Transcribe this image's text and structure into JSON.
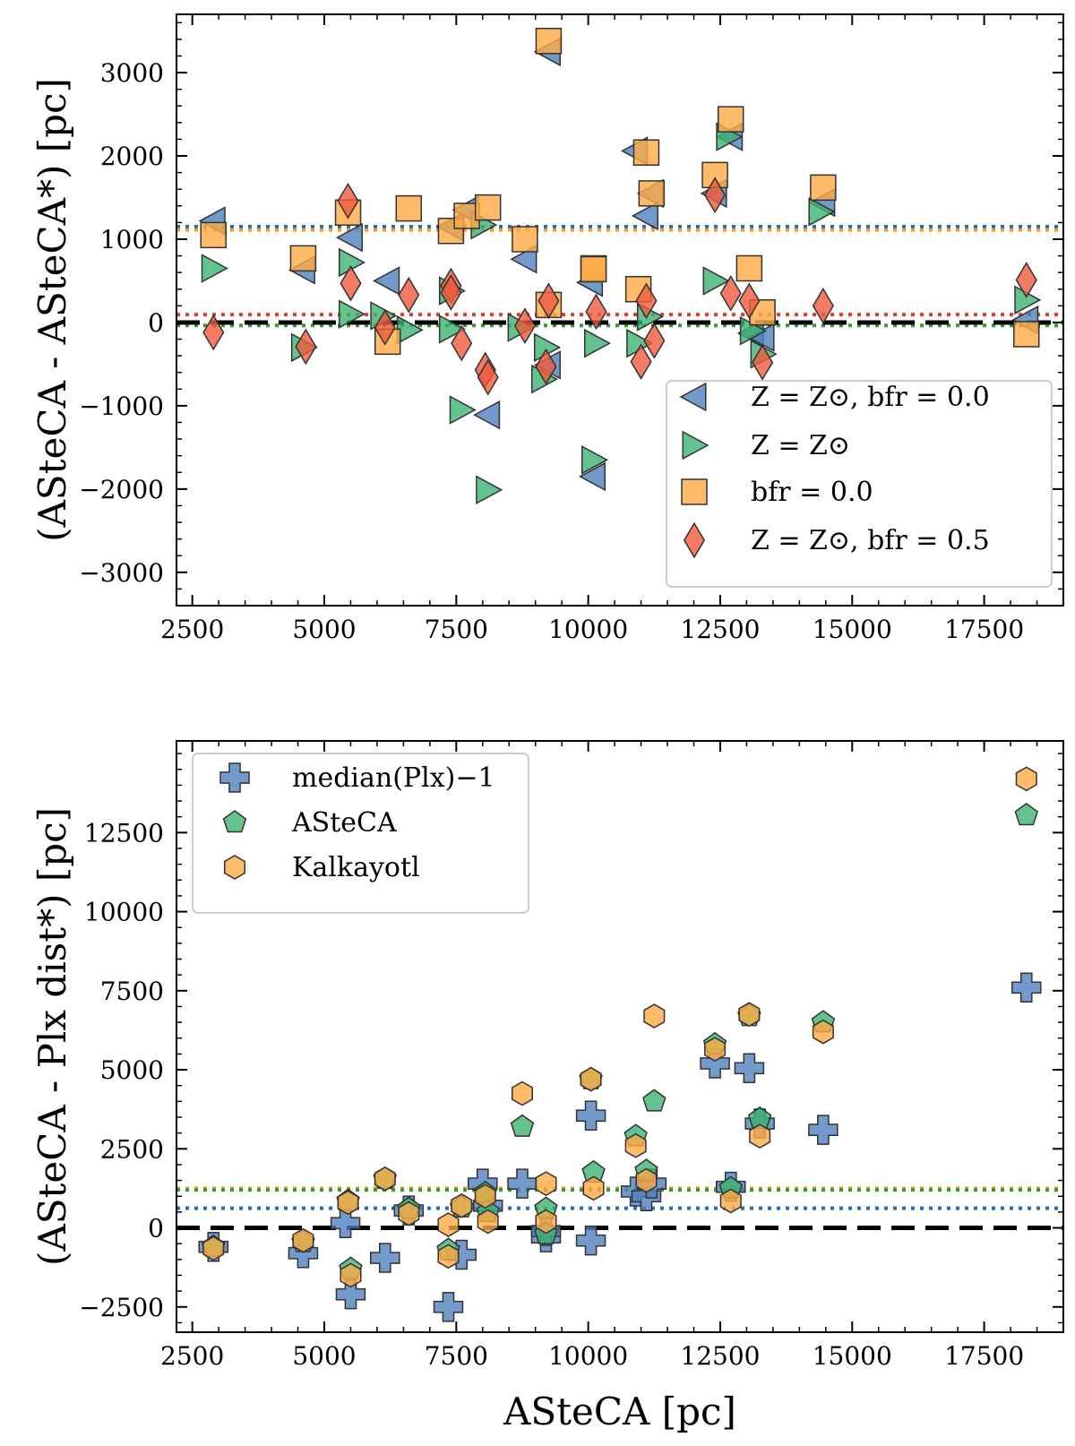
{
  "figure": {
    "xlabel_bottom": "ASteCA [pc]",
    "ylabel_top": "(ASteCA - ASteCA*) [pc]",
    "ylabel_bottom": "(ASteCA - Plx dist*) [pc]"
  },
  "colors": {
    "blue": "#4f81bd",
    "green": "#3cb371",
    "orange": "#ffaa44",
    "red": "#f05a3c",
    "olive": "#8b8b30"
  },
  "chart_data": [
    {
      "type": "scatter",
      "title": "",
      "xlabel": "",
      "ylabel": "(ASteCA - ASteCA*) [pc]",
      "xlim": [
        2200,
        19000
      ],
      "ylim": [
        -3400,
        3700
      ],
      "xticks": [
        "2500",
        "5000",
        "7500",
        "10000",
        "12500",
        "15000",
        "17500"
      ],
      "xtick_values": [
        2500,
        5000,
        7500,
        10000,
        12500,
        15000,
        17500
      ],
      "yticks": [
        "−3000",
        "−2000",
        "−1000",
        "0",
        "1000",
        "2000",
        "3000"
      ],
      "ytick_values": [
        -3000,
        -2000,
        -1000,
        0,
        1000,
        2000,
        3000
      ],
      "legend_position": "lower-right",
      "reference_lines": [
        {
          "y": 0,
          "style": "dashed",
          "color": "#000000"
        },
        {
          "y": 1150,
          "style": "dotted",
          "color": "#1f6fb4"
        },
        {
          "y": 1110,
          "style": "dotted",
          "color": "#ff9a1a"
        },
        {
          "y": 95,
          "style": "dotted",
          "color": "#e03c2c"
        },
        {
          "y": -35,
          "style": "dotted",
          "color": "#2ca02c"
        }
      ],
      "series": [
        {
          "name": "Z = Z⊙, b_fr = 0.0",
          "legend_label": "Z = Z⊙, bfr = 0.0",
          "marker": "triangle-left",
          "color": "#4f81bd",
          "points": [
            [
              2900,
              1220
            ],
            [
              4600,
              630
            ],
            [
              5500,
              1020
            ],
            [
              6200,
              500
            ],
            [
              7400,
              1150
            ],
            [
              7700,
              1350
            ],
            [
              8100,
              -1110
            ],
            [
              8800,
              760
            ],
            [
              9250,
              3250
            ],
            [
              9250,
              -510
            ],
            [
              10050,
              480
            ],
            [
              10100,
              -1850
            ],
            [
              10900,
              2060
            ],
            [
              11100,
              1280
            ],
            [
              11200,
              1550
            ],
            [
              12400,
              1550
            ],
            [
              12700,
              2230
            ],
            [
              13100,
              -130
            ],
            [
              13300,
              -180
            ],
            [
              14450,
              1440
            ],
            [
              18300,
              30
            ]
          ]
        },
        {
          "name": "Z = Z⊙",
          "legend_label": "Z = Z⊙",
          "marker": "triangle-right",
          "color": "#3cb371",
          "points": [
            [
              2900,
              650
            ],
            [
              4600,
              -300
            ],
            [
              5500,
              100
            ],
            [
              5500,
              720
            ],
            [
              6100,
              80
            ],
            [
              6600,
              -90
            ],
            [
              7400,
              -80
            ],
            [
              7400,
              380
            ],
            [
              7600,
              -1050
            ],
            [
              8000,
              1170
            ],
            [
              8100,
              -2010
            ],
            [
              8700,
              -60
            ],
            [
              9150,
              -680
            ],
            [
              9200,
              -300
            ],
            [
              10100,
              -1650
            ],
            [
              10150,
              -250
            ],
            [
              10950,
              -250
            ],
            [
              11150,
              70
            ],
            [
              12400,
              500
            ],
            [
              12650,
              2230
            ],
            [
              13100,
              -100
            ],
            [
              13300,
              -380
            ],
            [
              14400,
              1330
            ],
            [
              18300,
              270
            ]
          ]
        },
        {
          "name": "b_fr = 0.0",
          "legend_label": "bfr = 0.0",
          "marker": "square",
          "color": "#ffaa44",
          "points": [
            [
              2900,
              1050
            ],
            [
              4600,
              770
            ],
            [
              5450,
              1320
            ],
            [
              6200,
              -230
            ],
            [
              6600,
              1370
            ],
            [
              7400,
              1100
            ],
            [
              7700,
              1280
            ],
            [
              8100,
              1380
            ],
            [
              8800,
              1000
            ],
            [
              9250,
              3380
            ],
            [
              9250,
              210
            ],
            [
              10100,
              650
            ],
            [
              10100,
              640
            ],
            [
              10950,
              400
            ],
            [
              11100,
              2040
            ],
            [
              11200,
              1550
            ],
            [
              12400,
              1770
            ],
            [
              12700,
              2440
            ],
            [
              13050,
              650
            ],
            [
              13300,
              120
            ],
            [
              14450,
              1620
            ],
            [
              18300,
              -140
            ]
          ]
        },
        {
          "name": "Z = Z⊙, b_fr = 0.5",
          "legend_label": "Z = Z⊙, bfr = 0.5",
          "marker": "diamond",
          "color": "#f05a3c",
          "points": [
            [
              2900,
              -120
            ],
            [
              4650,
              -290
            ],
            [
              5450,
              1460
            ],
            [
              5500,
              470
            ],
            [
              6150,
              -60
            ],
            [
              6600,
              330
            ],
            [
              7400,
              440
            ],
            [
              7400,
              360
            ],
            [
              7600,
              -250
            ],
            [
              8050,
              -570
            ],
            [
              8100,
              -660
            ],
            [
              8800,
              -40
            ],
            [
              9200,
              -530
            ],
            [
              9250,
              260
            ],
            [
              10150,
              130
            ],
            [
              11000,
              -470
            ],
            [
              11100,
              260
            ],
            [
              11250,
              -220
            ],
            [
              12400,
              1530
            ],
            [
              12700,
              350
            ],
            [
              13050,
              260
            ],
            [
              13300,
              -480
            ],
            [
              14450,
              200
            ],
            [
              18300,
              510
            ]
          ]
        }
      ]
    },
    {
      "type": "scatter",
      "title": "",
      "xlabel": "ASteCA [pc]",
      "ylabel": "(ASteCA - Plx dist*) [pc]",
      "xlim": [
        2200,
        19000
      ],
      "ylim": [
        -3300,
        15400
      ],
      "xticks": [
        "2500",
        "5000",
        "7500",
        "10000",
        "12500",
        "15000",
        "17500"
      ],
      "xtick_values": [
        2500,
        5000,
        7500,
        10000,
        12500,
        15000,
        17500
      ],
      "yticks": [
        "−2500",
        "0",
        "2500",
        "5000",
        "7500",
        "10000",
        "12500"
      ],
      "ytick_values": [
        -2500,
        0,
        2500,
        5000,
        7500,
        10000,
        12500
      ],
      "legend_position": "upper-left",
      "reference_lines": [
        {
          "y": 0,
          "style": "dashed",
          "color": "#000000"
        },
        {
          "y": 1250,
          "style": "dotted",
          "color": "#ff9a1a"
        },
        {
          "y": 1200,
          "style": "dotted",
          "color": "#2ca02c"
        },
        {
          "y": 620,
          "style": "dotted",
          "color": "#1f6fb4"
        }
      ],
      "series": [
        {
          "name": "median(Plx)⁻¹",
          "legend_label": "median(Plx)−1",
          "marker": "plus",
          "color": "#4f81bd",
          "points": [
            [
              2900,
              -600
            ],
            [
              4600,
              -800
            ],
            [
              5400,
              150
            ],
            [
              5500,
              -2100
            ],
            [
              6150,
              -950
            ],
            [
              6600,
              550
            ],
            [
              7350,
              -2500
            ],
            [
              7600,
              -850
            ],
            [
              8000,
              1400
            ],
            [
              8100,
              700
            ],
            [
              8750,
              1400
            ],
            [
              9200,
              -300
            ],
            [
              9200,
              -100
            ],
            [
              10050,
              3550
            ],
            [
              10050,
              -400
            ],
            [
              10900,
              1150
            ],
            [
              11100,
              1000
            ],
            [
              11200,
              1400
            ],
            [
              12400,
              5200
            ],
            [
              12700,
              1300
            ],
            [
              13050,
              5050
            ],
            [
              13250,
              3300
            ],
            [
              14450,
              3100
            ],
            [
              18300,
              7600
            ]
          ]
        },
        {
          "name": "ASteCA",
          "legend_label": "ASteCA",
          "marker": "pentagon",
          "color": "#3cb371",
          "points": [
            [
              2900,
              -600
            ],
            [
              4600,
              -450
            ],
            [
              5450,
              850
            ],
            [
              5500,
              -1300
            ],
            [
              6150,
              1550
            ],
            [
              6600,
              600
            ],
            [
              7350,
              -700
            ],
            [
              7600,
              650
            ],
            [
              8050,
              1100
            ],
            [
              8100,
              500
            ],
            [
              8750,
              3200
            ],
            [
              9200,
              -200
            ],
            [
              9200,
              600
            ],
            [
              10050,
              4700
            ],
            [
              10100,
              1750
            ],
            [
              10900,
              2900
            ],
            [
              11100,
              1800
            ],
            [
              11250,
              4000
            ],
            [
              12400,
              5800
            ],
            [
              12700,
              1250
            ],
            [
              13050,
              6700
            ],
            [
              13250,
              3450
            ],
            [
              14450,
              6500
            ],
            [
              18300,
              13050
            ]
          ]
        },
        {
          "name": "Kalkayotl",
          "legend_label": "Kalkayotl",
          "marker": "hexagon",
          "color": "#ffaa44",
          "points": [
            [
              2900,
              -650
            ],
            [
              4600,
              -400
            ],
            [
              5450,
              800
            ],
            [
              5500,
              -1500
            ],
            [
              6150,
              1550
            ],
            [
              6600,
              450
            ],
            [
              7350,
              -900
            ],
            [
              7350,
              100
            ],
            [
              7600,
              700
            ],
            [
              8050,
              1000
            ],
            [
              8100,
              200
            ],
            [
              8750,
              4250
            ],
            [
              9200,
              1400
            ],
            [
              9200,
              200
            ],
            [
              10050,
              4700
            ],
            [
              10100,
              1250
            ],
            [
              10900,
              2600
            ],
            [
              11100,
              1500
            ],
            [
              11250,
              6700
            ],
            [
              12400,
              5650
            ],
            [
              12700,
              850
            ],
            [
              13050,
              6750
            ],
            [
              13250,
              2900
            ],
            [
              14450,
              6200
            ],
            [
              18300,
              14200
            ]
          ]
        }
      ]
    }
  ]
}
